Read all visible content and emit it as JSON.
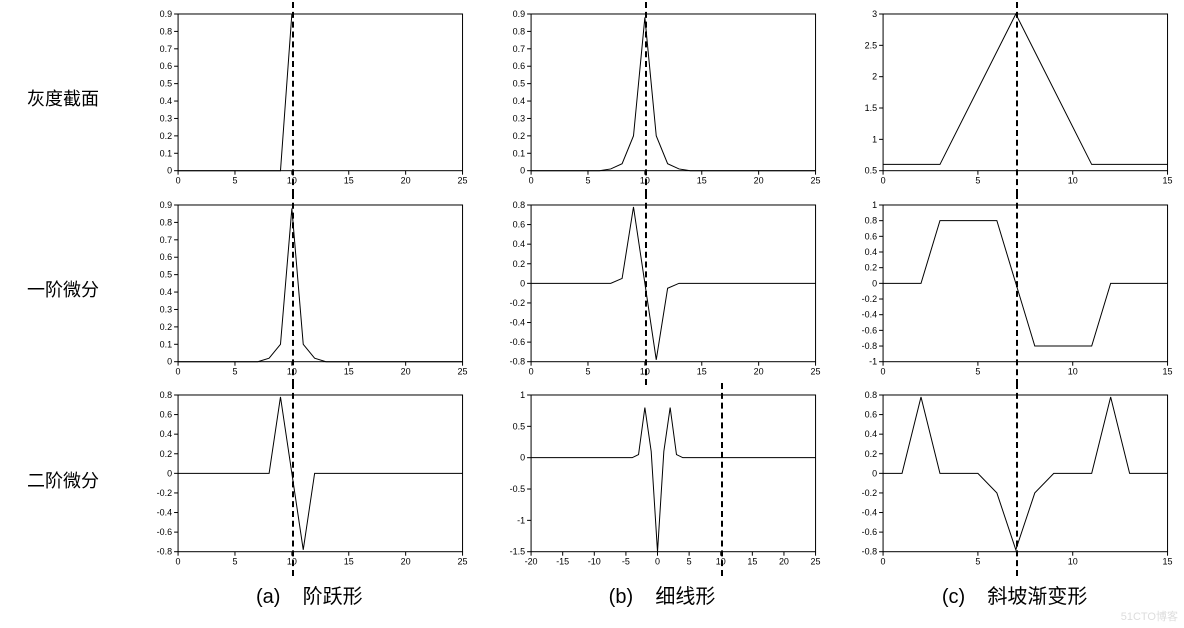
{
  "row_labels": [
    "灰度截面",
    "一阶微分",
    "二阶微分"
  ],
  "col_labels": [
    "(a)    阶跃形",
    "(b)    细线形",
    "(c)    斜坡渐变形"
  ],
  "style": {
    "background": "#ffffff",
    "line_color": "#000000",
    "axis_color": "#000000",
    "dash_color": "#000000",
    "font_size_row_label": 18,
    "font_size_col_label": 20,
    "font_size_tick": 9,
    "line_width": 1,
    "dash_width": 2.5
  },
  "dash_positions": {
    "a": 10,
    "b": 10,
    "c": 7
  },
  "plots": {
    "a1": {
      "xlim": [
        0,
        25
      ],
      "ylim": [
        0,
        0.9
      ],
      "xticks": [
        0,
        5,
        10,
        15,
        20,
        25
      ],
      "yticks": [
        0,
        0.1,
        0.2,
        0.3,
        0.4,
        0.5,
        0.6,
        0.7,
        0.8,
        0.9
      ],
      "data": [
        [
          0,
          0
        ],
        [
          9,
          0
        ],
        [
          10,
          0.9
        ],
        [
          25,
          0.9
        ]
      ]
    },
    "a2": {
      "xlim": [
        0,
        25
      ],
      "ylim": [
        0,
        0.9
      ],
      "xticks": [
        0,
        5,
        10,
        15,
        20,
        25
      ],
      "yticks": [
        0,
        0.1,
        0.2,
        0.3,
        0.4,
        0.5,
        0.6,
        0.7,
        0.8,
        0.9
      ],
      "data": [
        [
          0,
          0
        ],
        [
          7,
          0
        ],
        [
          8,
          0.02
        ],
        [
          9,
          0.1
        ],
        [
          10,
          0.88
        ],
        [
          11,
          0.1
        ],
        [
          12,
          0.02
        ],
        [
          13,
          0
        ],
        [
          25,
          0
        ]
      ]
    },
    "a3": {
      "xlim": [
        0,
        25
      ],
      "ylim": [
        -0.8,
        0.8
      ],
      "xticks": [
        0,
        5,
        10,
        15,
        20,
        25
      ],
      "yticks": [
        -0.8,
        -0.6,
        -0.4,
        -0.2,
        0,
        0.2,
        0.4,
        0.6,
        0.8
      ],
      "data": [
        [
          0,
          0
        ],
        [
          8,
          0
        ],
        [
          9,
          0.78
        ],
        [
          10,
          0
        ],
        [
          11,
          -0.78
        ],
        [
          12,
          0
        ],
        [
          25,
          0
        ]
      ]
    },
    "b1": {
      "xlim": [
        0,
        25
      ],
      "ylim": [
        0,
        0.9
      ],
      "xticks": [
        0,
        5,
        10,
        15,
        20,
        25
      ],
      "yticks": [
        0,
        0.1,
        0.2,
        0.3,
        0.4,
        0.5,
        0.6,
        0.7,
        0.8,
        0.9
      ],
      "data": [
        [
          0,
          0
        ],
        [
          6,
          0
        ],
        [
          7,
          0.01
        ],
        [
          8,
          0.04
        ],
        [
          9,
          0.2
        ],
        [
          10,
          0.88
        ],
        [
          11,
          0.2
        ],
        [
          12,
          0.04
        ],
        [
          13,
          0.01
        ],
        [
          14,
          0
        ],
        [
          25,
          0
        ]
      ]
    },
    "b2": {
      "xlim": [
        0,
        25
      ],
      "ylim": [
        -0.8,
        0.8
      ],
      "xticks": [
        0,
        5,
        10,
        15,
        20,
        25
      ],
      "yticks": [
        -0.8,
        -0.6,
        -0.4,
        -0.2,
        0,
        0.2,
        0.4,
        0.6,
        0.8
      ],
      "data": [
        [
          0,
          0
        ],
        [
          7,
          0
        ],
        [
          8,
          0.05
        ],
        [
          9,
          0.78
        ],
        [
          10,
          0
        ],
        [
          11,
          -0.78
        ],
        [
          12,
          -0.05
        ],
        [
          13,
          0
        ],
        [
          25,
          0
        ]
      ]
    },
    "b3": {
      "xlim": [
        -20,
        25
      ],
      "ylim": [
        -1.5,
        1
      ],
      "xticks": [
        -20,
        -15,
        -10,
        -5,
        0,
        5,
        10,
        15,
        20,
        25
      ],
      "yticks": [
        -1.5,
        -1,
        -0.5,
        0,
        0.5,
        1
      ],
      "data": [
        [
          -20,
          0
        ],
        [
          -4,
          0
        ],
        [
          -3,
          0.05
        ],
        [
          -2,
          0.8
        ],
        [
          -1,
          0.1
        ],
        [
          0,
          -1.5
        ],
        [
          1,
          0.1
        ],
        [
          2,
          0.8
        ],
        [
          3,
          0.05
        ],
        [
          4,
          0
        ],
        [
          25,
          0
        ]
      ]
    },
    "c1": {
      "xlim": [
        0,
        15
      ],
      "ylim": [
        0.5,
        3
      ],
      "xticks": [
        0,
        5,
        10,
        15
      ],
      "yticks": [
        0.5,
        1,
        1.5,
        2,
        2.5,
        3
      ],
      "data": [
        [
          0,
          0.6
        ],
        [
          3,
          0.6
        ],
        [
          7,
          3
        ],
        [
          11,
          0.6
        ],
        [
          15,
          0.6
        ]
      ]
    },
    "c2": {
      "xlim": [
        0,
        15
      ],
      "ylim": [
        -1,
        1
      ],
      "xticks": [
        0,
        5,
        10,
        15
      ],
      "yticks": [
        -1,
        -0.8,
        -0.6,
        -0.4,
        -0.2,
        0,
        0.2,
        0.4,
        0.6,
        0.8,
        1
      ],
      "data": [
        [
          0,
          0
        ],
        [
          2,
          0
        ],
        [
          3,
          0.8
        ],
        [
          6,
          0.8
        ],
        [
          7,
          0
        ],
        [
          8,
          -0.8
        ],
        [
          11,
          -0.8
        ],
        [
          12,
          0
        ],
        [
          15,
          0
        ]
      ]
    },
    "c3": {
      "xlim": [
        0,
        15
      ],
      "ylim": [
        -0.8,
        0.8
      ],
      "xticks": [
        0,
        5,
        10,
        15
      ],
      "yticks": [
        -0.8,
        -0.6,
        -0.4,
        -0.2,
        0,
        0.2,
        0.4,
        0.6,
        0.8
      ],
      "data": [
        [
          0,
          0
        ],
        [
          1,
          0
        ],
        [
          2,
          0.78
        ],
        [
          3,
          0
        ],
        [
          5,
          0
        ],
        [
          6,
          -0.2
        ],
        [
          7,
          -0.78
        ],
        [
          8,
          -0.2
        ],
        [
          9,
          0
        ],
        [
          11,
          0
        ],
        [
          12,
          0.78
        ],
        [
          13,
          0
        ],
        [
          15,
          0
        ]
      ]
    }
  },
  "watermark": "51CTO博客"
}
